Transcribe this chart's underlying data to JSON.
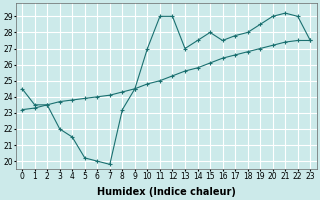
{
  "xlabel": "Humidex (Indice chaleur)",
  "bg_color": "#cceaea",
  "grid_color": "#ffffff",
  "line_color": "#1a7070",
  "ylim": [
    19.5,
    29.8
  ],
  "xlim": [
    -0.5,
    23.5
  ],
  "yticks": [
    20,
    21,
    22,
    23,
    24,
    25,
    26,
    27,
    28,
    29
  ],
  "xticks": [
    0,
    1,
    2,
    3,
    4,
    5,
    6,
    7,
    8,
    9,
    10,
    11,
    12,
    13,
    14,
    15,
    16,
    17,
    18,
    19,
    20,
    21,
    22,
    23
  ],
  "series1_x": [
    0,
    1,
    2,
    3,
    4,
    5,
    6,
    7,
    8,
    9,
    10,
    11,
    12,
    13,
    14,
    15,
    16,
    17,
    18,
    19,
    20,
    21,
    22,
    23
  ],
  "series1_y": [
    24.5,
    23.5,
    23.5,
    22.0,
    21.5,
    20.2,
    20.0,
    19.8,
    23.2,
    24.5,
    27.0,
    29.0,
    29.0,
    27.0,
    27.5,
    28.0,
    27.5,
    27.8,
    28.0,
    28.5,
    29.0,
    29.2,
    29.0,
    27.5
  ],
  "series2_x": [
    0,
    1,
    2,
    3,
    4,
    5,
    6,
    7,
    8,
    9,
    10,
    11,
    12,
    13,
    14,
    15,
    16,
    17,
    18,
    19,
    20,
    21,
    22,
    23
  ],
  "series2_y": [
    23.2,
    23.3,
    23.5,
    23.7,
    23.8,
    23.9,
    24.0,
    24.1,
    24.3,
    24.5,
    24.8,
    25.0,
    25.3,
    25.6,
    25.8,
    26.1,
    26.4,
    26.6,
    26.8,
    27.0,
    27.2,
    27.4,
    27.5,
    27.5
  ],
  "marker": "+",
  "tick_fontsize": 5.5,
  "label_fontsize": 7
}
